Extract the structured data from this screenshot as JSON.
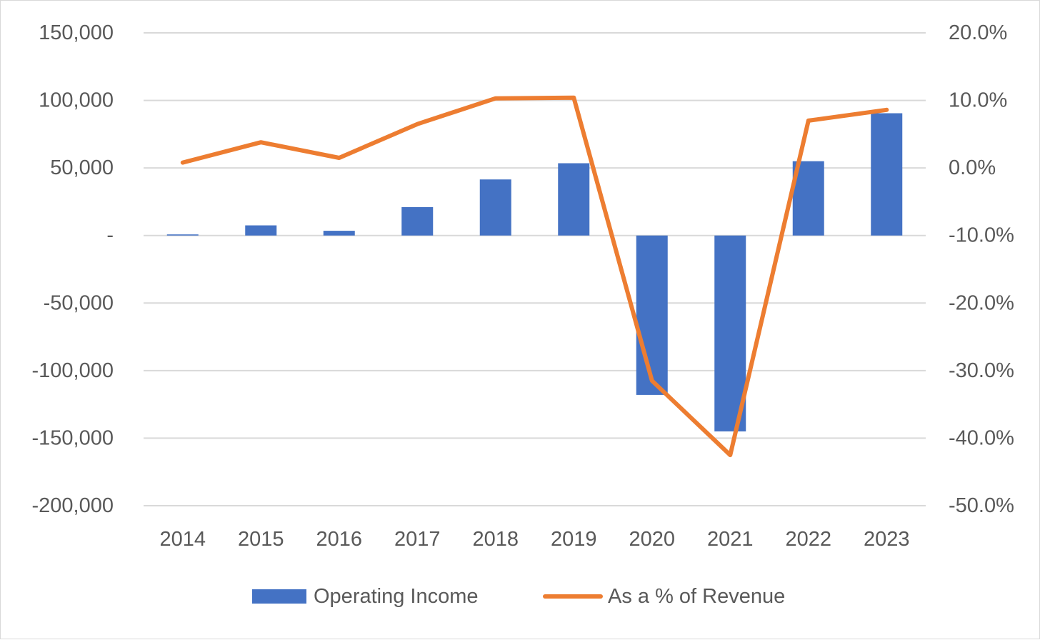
{
  "chart_data": {
    "type": "bar",
    "categories": [
      "2014",
      "2015",
      "2016",
      "2017",
      "2018",
      "2019",
      "2020",
      "2021",
      "2022",
      "2023"
    ],
    "series": [
      {
        "name": "Operating Income",
        "type": "bar",
        "axis": "left",
        "color": "#4472C4",
        "values": [
          800,
          7500,
          3500,
          21000,
          41500,
          53500,
          -118000,
          -145000,
          55000,
          90500
        ]
      },
      {
        "name": "As a % of Revenue",
        "type": "line",
        "axis": "right",
        "color": "#ED7D31",
        "values": [
          0.8,
          3.8,
          1.5,
          6.5,
          10.3,
          10.4,
          -31.5,
          -42.5,
          7.0,
          8.6
        ]
      }
    ],
    "y_left": {
      "ylim": [
        -200000,
        150000
      ],
      "ticks": [
        150000,
        100000,
        50000,
        0,
        -50000,
        -100000,
        -150000,
        -200000
      ],
      "tick_labels": [
        "150,000",
        "100,000",
        "50,000",
        "-",
        "-50,000",
        "-100,000",
        "-150,000",
        "-200,000"
      ]
    },
    "y_right": {
      "ylim": [
        -50,
        20
      ],
      "ticks": [
        20,
        10,
        0,
        -10,
        -20,
        -30,
        -40,
        -50
      ],
      "tick_labels": [
        "20.0%",
        "10.0%",
        "0.0%",
        "-10.0%",
        "-20.0%",
        "-30.0%",
        "-40.0%",
        "-50.0%"
      ]
    },
    "grid": true,
    "legend_position": "bottom",
    "title": "",
    "xlabel": "",
    "ylabel": ""
  }
}
